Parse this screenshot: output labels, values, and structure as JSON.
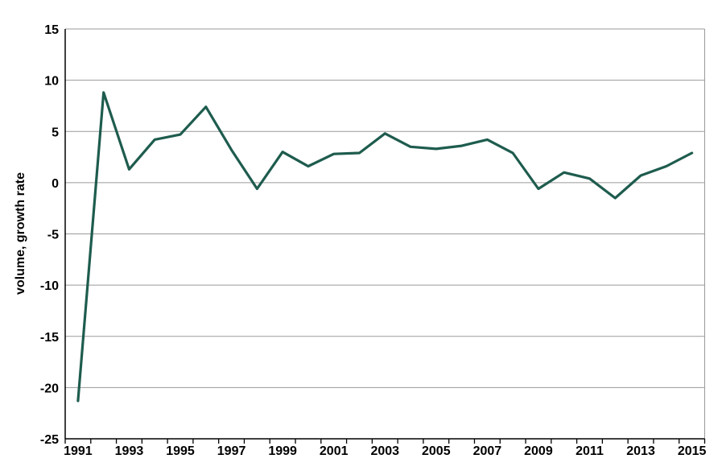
{
  "chart_data": {
    "type": "line",
    "title": "",
    "xlabel": "",
    "ylabel": "volume, growth rate",
    "x": [
      1991,
      1992,
      1993,
      1994,
      1995,
      1996,
      1997,
      1998,
      1999,
      2000,
      2001,
      2002,
      2003,
      2004,
      2005,
      2006,
      2007,
      2008,
      2009,
      2010,
      2011,
      2012,
      2013,
      2014,
      2015
    ],
    "series": [
      {
        "name": "volume, growth rate",
        "values": [
          -21.3,
          8.8,
          1.3,
          4.2,
          4.7,
          7.4,
          3.2,
          -0.6,
          3.0,
          1.6,
          2.8,
          2.9,
          4.8,
          3.5,
          3.3,
          3.6,
          4.2,
          2.9,
          -0.6,
          1.0,
          0.4,
          -1.5,
          0.7,
          1.6,
          2.9
        ]
      }
    ],
    "ylim": [
      -25,
      15
    ],
    "ytick_step": 5,
    "yticks": [
      15,
      10,
      5,
      0,
      -5,
      -10,
      -15,
      -20,
      -25
    ],
    "xtick_labels": [
      "1991",
      "1993",
      "1995",
      "1997",
      "1999",
      "2001",
      "2003",
      "2005",
      "2007",
      "2009",
      "2011",
      "2013",
      "2015"
    ],
    "grid": "horizontal-on",
    "legend_position": "none",
    "line_color": "#1e5c4e",
    "grid_color": "#9a9a9a",
    "border_color": "#9a9a9a",
    "axis_color": "#000000",
    "background_color": "#ffffff"
  }
}
